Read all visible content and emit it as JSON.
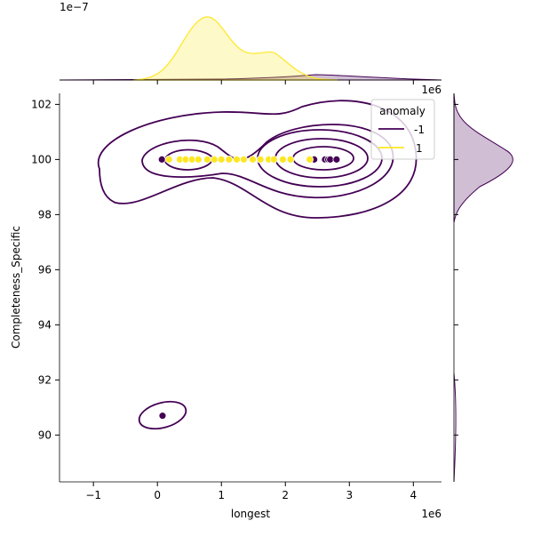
{
  "chart_data": {
    "type": "scatter",
    "kind": "jointplot with kde contours and marginal kde",
    "xlabel": "longest",
    "ylabel": "Completeness_Specific",
    "x_offset_label": "1e6",
    "y_offset_label_top_marginal": "1e−7",
    "xlim": [
      -1.53,
      4.44
    ],
    "ylim": [
      88.3,
      102.4
    ],
    "x_ticks": [
      "−1",
      "0",
      "1",
      "2",
      "3",
      "4"
    ],
    "y_ticks": [
      "90",
      "92",
      "94",
      "96",
      "98",
      "100",
      "102"
    ],
    "legend": {
      "title": "anomaly",
      "position": "top-right",
      "entries": [
        "-1",
        "1"
      ]
    },
    "colors": {
      "-1": "#440154",
      "1": "#fde725"
    },
    "series": [
      {
        "name": "-1",
        "points": [
          [
            0.07,
            100
          ],
          [
            0.18,
            100
          ],
          [
            1.97,
            100
          ],
          [
            2.43,
            100
          ],
          [
            2.45,
            100
          ],
          [
            2.62,
            100
          ],
          [
            2.67,
            100
          ],
          [
            2.7,
            100
          ],
          [
            2.8,
            100
          ],
          [
            0.08,
            90.7
          ]
        ]
      },
      {
        "name": "1",
        "points": [
          [
            0.18,
            100
          ],
          [
            0.35,
            100
          ],
          [
            0.44,
            100
          ],
          [
            0.54,
            100
          ],
          [
            0.64,
            100
          ],
          [
            0.78,
            100
          ],
          [
            0.89,
            100
          ],
          [
            1.0,
            100
          ],
          [
            1.12,
            100
          ],
          [
            1.24,
            100
          ],
          [
            1.35,
            100
          ],
          [
            1.49,
            100
          ],
          [
            1.61,
            100
          ],
          [
            1.74,
            100
          ],
          [
            1.82,
            100
          ],
          [
            1.96,
            100
          ],
          [
            2.08,
            100
          ],
          [
            2.38,
            100
          ]
        ]
      }
    ]
  }
}
